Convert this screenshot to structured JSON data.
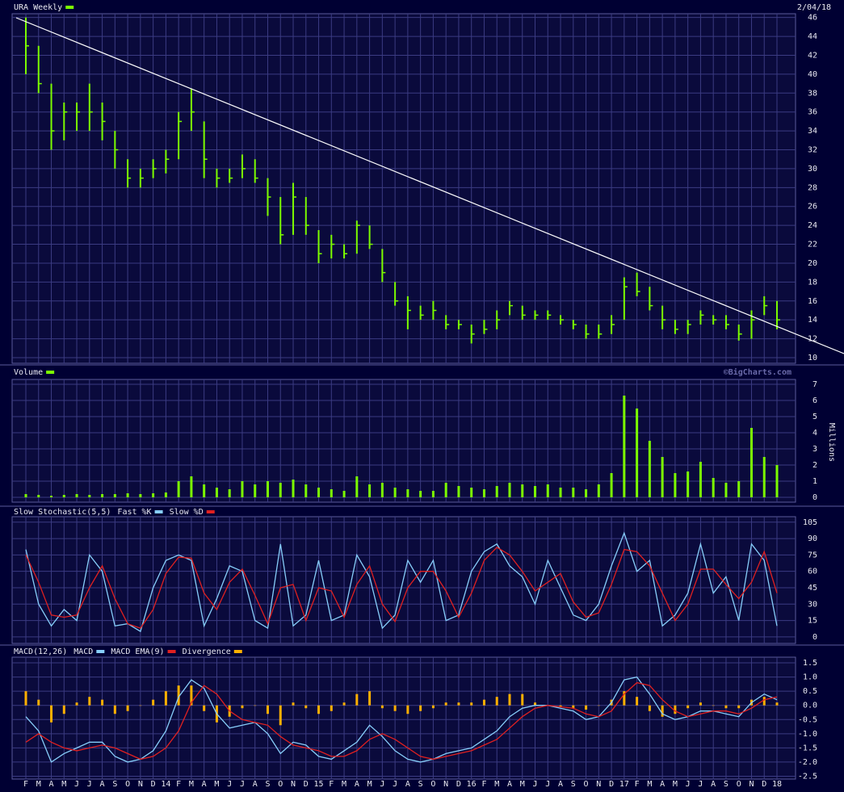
{
  "chart_data": [
    {
      "type": "hlc",
      "date": "2/04/18",
      "watermark": "©BigCharts.com",
      "series": [
        {
          "name": "URA Weekly",
          "color": "#7cfc00",
          "high": [
            46,
            43,
            39,
            37,
            37,
            39,
            37,
            34,
            31,
            30,
            31,
            32,
            36,
            38.5,
            35,
            30,
            30,
            31.5,
            31,
            29,
            27,
            28.5,
            27,
            23.5,
            23,
            22,
            24.5,
            24,
            21.5,
            18,
            16.5,
            15.5,
            16,
            14.5,
            14,
            13.5,
            14,
            15,
            16,
            15.5,
            15,
            15,
            14.5,
            14,
            13.5,
            13.5,
            14.5,
            18.5,
            19,
            17.5,
            15.5,
            14,
            14,
            15,
            14.5,
            14.5,
            13.5,
            15,
            16.5,
            16
          ],
          "low": [
            40,
            38,
            32,
            33,
            34,
            34,
            33,
            30,
            28,
            28,
            29,
            29.5,
            31,
            34,
            29,
            28,
            28.5,
            29,
            28.5,
            25,
            22,
            23,
            23,
            20,
            20.5,
            20.5,
            21,
            21.5,
            18,
            15.5,
            13,
            14,
            14,
            13,
            13,
            11.5,
            12.5,
            13,
            14.5,
            14,
            14,
            14,
            13.5,
            13,
            12,
            12,
            12.5,
            14,
            16.5,
            15,
            13,
            12.5,
            12.5,
            13.5,
            13.5,
            13,
            11.8,
            12,
            14.5,
            13
          ],
          "values": [
            43,
            39,
            34,
            36,
            36,
            36,
            35,
            32,
            29,
            29,
            30,
            31,
            35,
            36,
            31,
            29,
            29,
            30,
            29,
            27,
            23,
            27,
            24,
            21,
            22,
            21,
            24,
            22,
            19,
            16,
            15,
            14.5,
            15,
            13.5,
            13.5,
            12.5,
            13,
            14,
            15.5,
            14.5,
            14.5,
            14.5,
            14,
            13.5,
            12.5,
            12.5,
            13.5,
            17.5,
            17,
            15.5,
            14,
            13,
            13.5,
            14.5,
            14,
            13.5,
            12.5,
            14,
            15.5,
            14
          ]
        }
      ],
      "ylim": [
        9.4,
        46.4
      ],
      "yticks": [
        10,
        12,
        14,
        16,
        18,
        20,
        22,
        24,
        26,
        28,
        30,
        32,
        34,
        36,
        38,
        40,
        42,
        44,
        46
      ],
      "grid": true
    },
    {
      "type": "bar",
      "y_label": "Millions",
      "series": [
        {
          "name": "Volume",
          "color": "#7cfc00",
          "values": [
            0.2,
            0.15,
            0.1,
            0.15,
            0.2,
            0.15,
            0.2,
            0.2,
            0.25,
            0.2,
            0.25,
            0.3,
            1.0,
            1.3,
            0.8,
            0.6,
            0.5,
            1.0,
            0.8,
            1.0,
            0.9,
            1.1,
            0.8,
            0.6,
            0.5,
            0.4,
            1.3,
            0.8,
            0.9,
            0.6,
            0.5,
            0.4,
            0.4,
            0.9,
            0.7,
            0.6,
            0.5,
            0.7,
            0.9,
            0.8,
            0.7,
            0.8,
            0.6,
            0.6,
            0.5,
            0.8,
            1.5,
            6.3,
            5.5,
            3.5,
            2.5,
            1.5,
            1.6,
            2.2,
            1.2,
            0.9,
            1.0,
            4.3,
            2.5,
            2.0
          ]
        }
      ],
      "ylim": [
        -0.3,
        7.3
      ],
      "yticks": [
        0,
        1,
        2,
        3,
        4,
        5,
        6,
        7
      ],
      "grid": true
    },
    {
      "type": "line",
      "title": "Slow Stochastic(5,5)",
      "series": [
        {
          "name": "Fast %K",
          "color": "#87cefa",
          "values": [
            80,
            30,
            10,
            25,
            15,
            75,
            60,
            10,
            12,
            5,
            45,
            70,
            75,
            70,
            10,
            35,
            65,
            60,
            15,
            8,
            85,
            10,
            20,
            70,
            15,
            20,
            75,
            55,
            8,
            20,
            70,
            50,
            70,
            15,
            20,
            60,
            78,
            85,
            65,
            55,
            30,
            70,
            45,
            20,
            15,
            30,
            65,
            95,
            60,
            70,
            10,
            20,
            40,
            85,
            40,
            55,
            15,
            85,
            70,
            10
          ]
        },
        {
          "name": "Slow %D",
          "color": "#e02020",
          "values": [
            75,
            50,
            20,
            18,
            20,
            45,
            65,
            35,
            12,
            8,
            25,
            58,
            73,
            72,
            40,
            25,
            50,
            62,
            38,
            12,
            45,
            48,
            15,
            45,
            42,
            18,
            48,
            65,
            30,
            14,
            45,
            60,
            60,
            42,
            18,
            40,
            70,
            82,
            75,
            60,
            42,
            50,
            58,
            32,
            18,
            22,
            48,
            80,
            78,
            65,
            40,
            15,
            30,
            62,
            62,
            48,
            35,
            50,
            78,
            40
          ]
        }
      ],
      "ylim": [
        -6,
        110
      ],
      "yticks": [
        0,
        15,
        30,
        45,
        60,
        75,
        90,
        105
      ],
      "grid": true
    },
    {
      "type": "line",
      "title": "MACD(12,26)",
      "categories": [
        "F",
        "M",
        "A",
        "M",
        "J",
        "J",
        "A",
        "S",
        "O",
        "N",
        "D",
        "14",
        "F",
        "M",
        "A",
        "M",
        "J",
        "J",
        "A",
        "S",
        "O",
        "N",
        "D",
        "15",
        "F",
        "M",
        "A",
        "M",
        "J",
        "J",
        "A",
        "S",
        "O",
        "N",
        "D",
        "16",
        "F",
        "M",
        "A",
        "M",
        "J",
        "J",
        "A",
        "S",
        "O",
        "N",
        "D",
        "17",
        "F",
        "M",
        "A",
        "M",
        "J",
        "J",
        "A",
        "S",
        "O",
        "N",
        "D",
        "18"
      ],
      "series": [
        {
          "name": "MACD",
          "color": "#87cefa",
          "values": [
            -0.4,
            -0.9,
            -2.0,
            -1.7,
            -1.5,
            -1.3,
            -1.3,
            -1.8,
            -2.0,
            -1.9,
            -1.6,
            -0.9,
            0.3,
            0.9,
            0.6,
            -0.3,
            -0.8,
            -0.7,
            -0.6,
            -1.0,
            -1.7,
            -1.3,
            -1.4,
            -1.8,
            -1.9,
            -1.6,
            -1.3,
            -0.7,
            -1.1,
            -1.6,
            -1.9,
            -2.0,
            -1.9,
            -1.7,
            -1.6,
            -1.5,
            -1.2,
            -0.9,
            -0.4,
            -0.1,
            0,
            0,
            -0.1,
            -0.2,
            -0.5,
            -0.4,
            0.1,
            0.9,
            1.0,
            0.4,
            -0.3,
            -0.5,
            -0.4,
            -0.2,
            -0.2,
            -0.3,
            -0.4,
            0.1,
            0.4,
            0.2
          ]
        },
        {
          "name": "MACD EMA(9)",
          "color": "#e02020",
          "values": [
            -1.3,
            -1.0,
            -1.3,
            -1.5,
            -1.6,
            -1.5,
            -1.4,
            -1.5,
            -1.7,
            -1.9,
            -1.8,
            -1.5,
            -0.9,
            0.1,
            0.7,
            0.4,
            -0.2,
            -0.5,
            -0.6,
            -0.7,
            -1.1,
            -1.4,
            -1.5,
            -1.6,
            -1.8,
            -1.8,
            -1.6,
            -1.2,
            -1.0,
            -1.2,
            -1.5,
            -1.8,
            -1.9,
            -1.8,
            -1.7,
            -1.6,
            -1.4,
            -1.2,
            -0.8,
            -0.4,
            -0.1,
            0,
            -0.05,
            -0.1,
            -0.3,
            -0.4,
            -0.2,
            0.4,
            0.8,
            0.7,
            0.2,
            -0.2,
            -0.4,
            -0.3,
            -0.2,
            -0.2,
            -0.3,
            -0.1,
            0.2,
            0.3
          ]
        },
        {
          "name": "Divergence",
          "color": "#ffb000",
          "type": "bar",
          "values": [
            0.5,
            0.2,
            -0.6,
            -0.3,
            0.1,
            0.3,
            0.2,
            -0.3,
            -0.2,
            0,
            0.2,
            0.5,
            0.7,
            0.7,
            -0.2,
            -0.6,
            -0.4,
            -0.1,
            0,
            -0.3,
            -0.7,
            0.1,
            -0.1,
            -0.3,
            -0.2,
            0.1,
            0.4,
            0.5,
            -0.1,
            -0.2,
            -0.3,
            -0.2,
            -0.1,
            0.1,
            0.1,
            0.1,
            0.2,
            0.3,
            0.4,
            0.4,
            0.1,
            0,
            -0.05,
            -0.1,
            -0.15,
            0,
            0.2,
            0.5,
            0.3,
            -0.2,
            -0.4,
            -0.3,
            -0.1,
            0.1,
            0,
            -0.1,
            -0.1,
            0.2,
            0.3,
            0.1
          ]
        }
      ],
      "ylim": [
        -2.6,
        1.7
      ],
      "yticks": [
        1.5,
        {
          "value": 1,
          "label": "1.0"
        },
        0.5,
        {
          "value": 0,
          "label": "0.0"
        },
        -0.5,
        {
          "value": -1,
          "label": "-1.0"
        },
        -1.5,
        {
          "value": -2,
          "label": "-2.0"
        },
        -2.5
      ],
      "grid": true
    }
  ]
}
